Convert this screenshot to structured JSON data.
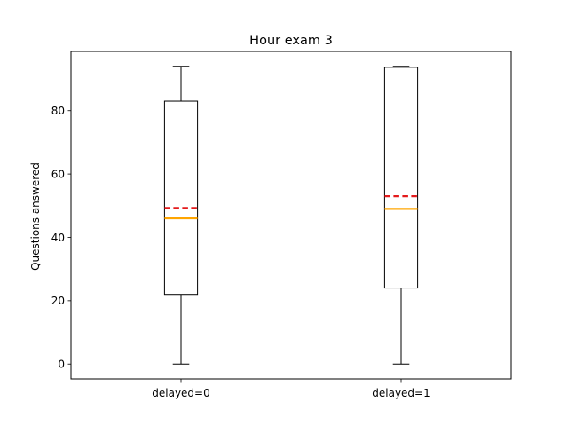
{
  "chart_data": {
    "type": "box",
    "title": "Hour exam 3",
    "xlabel": "",
    "ylabel": "Questions answered",
    "ylim": [
      -4.7,
      98.7
    ],
    "yticks": [
      0,
      20,
      40,
      60,
      80
    ],
    "categories": [
      "delayed=0",
      "delayed=1"
    ],
    "boxes": [
      {
        "label": "delayed=0",
        "whisker_low": 0,
        "q1": 22,
        "median": 46,
        "mean": 49.3,
        "q3": 83,
        "whisker_high": 94
      },
      {
        "label": "delayed=1",
        "whisker_low": 0,
        "q1": 24,
        "median": 49,
        "mean": 53,
        "q3": 93.7,
        "whisker_high": 94
      }
    ],
    "median_color": "#ffa500",
    "mean_color": "#e41a1c",
    "box_color": "#000000",
    "grid": false
  }
}
